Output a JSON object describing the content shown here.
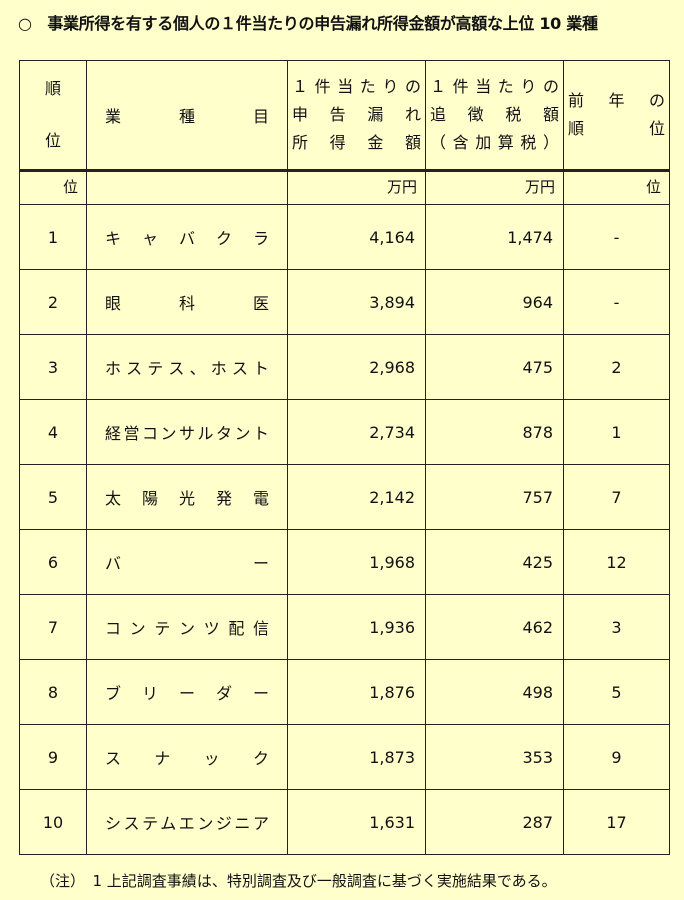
{
  "title": "○　事業所得を有する個人の１件当たりの申告漏れ所得金額が高額な上位 10 業種",
  "headers": {
    "rank": [
      "順",
      "位"
    ],
    "industry": "業　種　目",
    "income": [
      "１件当たりの",
      "申告漏れ",
      "所得金額"
    ],
    "tax": [
      "１件当たりの",
      "追徴税額",
      "（含加算税）"
    ],
    "prev": [
      "前年の",
      "順　位"
    ]
  },
  "units": {
    "rank": "位",
    "industry": "",
    "income": "万円",
    "tax": "万円",
    "prev": "位"
  },
  "rows": [
    {
      "rank": "1",
      "industry": "キャバクラ",
      "income": "4,164",
      "tax": "1,474",
      "prev": "-"
    },
    {
      "rank": "2",
      "industry": "眼科医",
      "income": "3,894",
      "tax": "964",
      "prev": "-"
    },
    {
      "rank": "3",
      "industry": "ホステス、ホスト",
      "income": "2,968",
      "tax": "475",
      "prev": "2"
    },
    {
      "rank": "4",
      "industry": "経営コンサルタント",
      "income": "2,734",
      "tax": "878",
      "prev": "1"
    },
    {
      "rank": "5",
      "industry": "太陽光発電",
      "income": "2,142",
      "tax": "757",
      "prev": "7"
    },
    {
      "rank": "6",
      "industry": "バー",
      "income": "1,968",
      "tax": "425",
      "prev": "12"
    },
    {
      "rank": "7",
      "industry": "コンテンツ配信",
      "income": "1,936",
      "tax": "462",
      "prev": "3"
    },
    {
      "rank": "8",
      "industry": "ブリーダー",
      "income": "1,876",
      "tax": "498",
      "prev": "5"
    },
    {
      "rank": "9",
      "industry": "スナック",
      "income": "1,873",
      "tax": "353",
      "prev": "9"
    },
    {
      "rank": "10",
      "industry": "システムエンジニア",
      "income": "1,631",
      "tax": "287",
      "prev": "17"
    }
  ],
  "note": "（注）　1 上記調査事績は、特別調査及び一般調査に基づく実施結果である。"
}
